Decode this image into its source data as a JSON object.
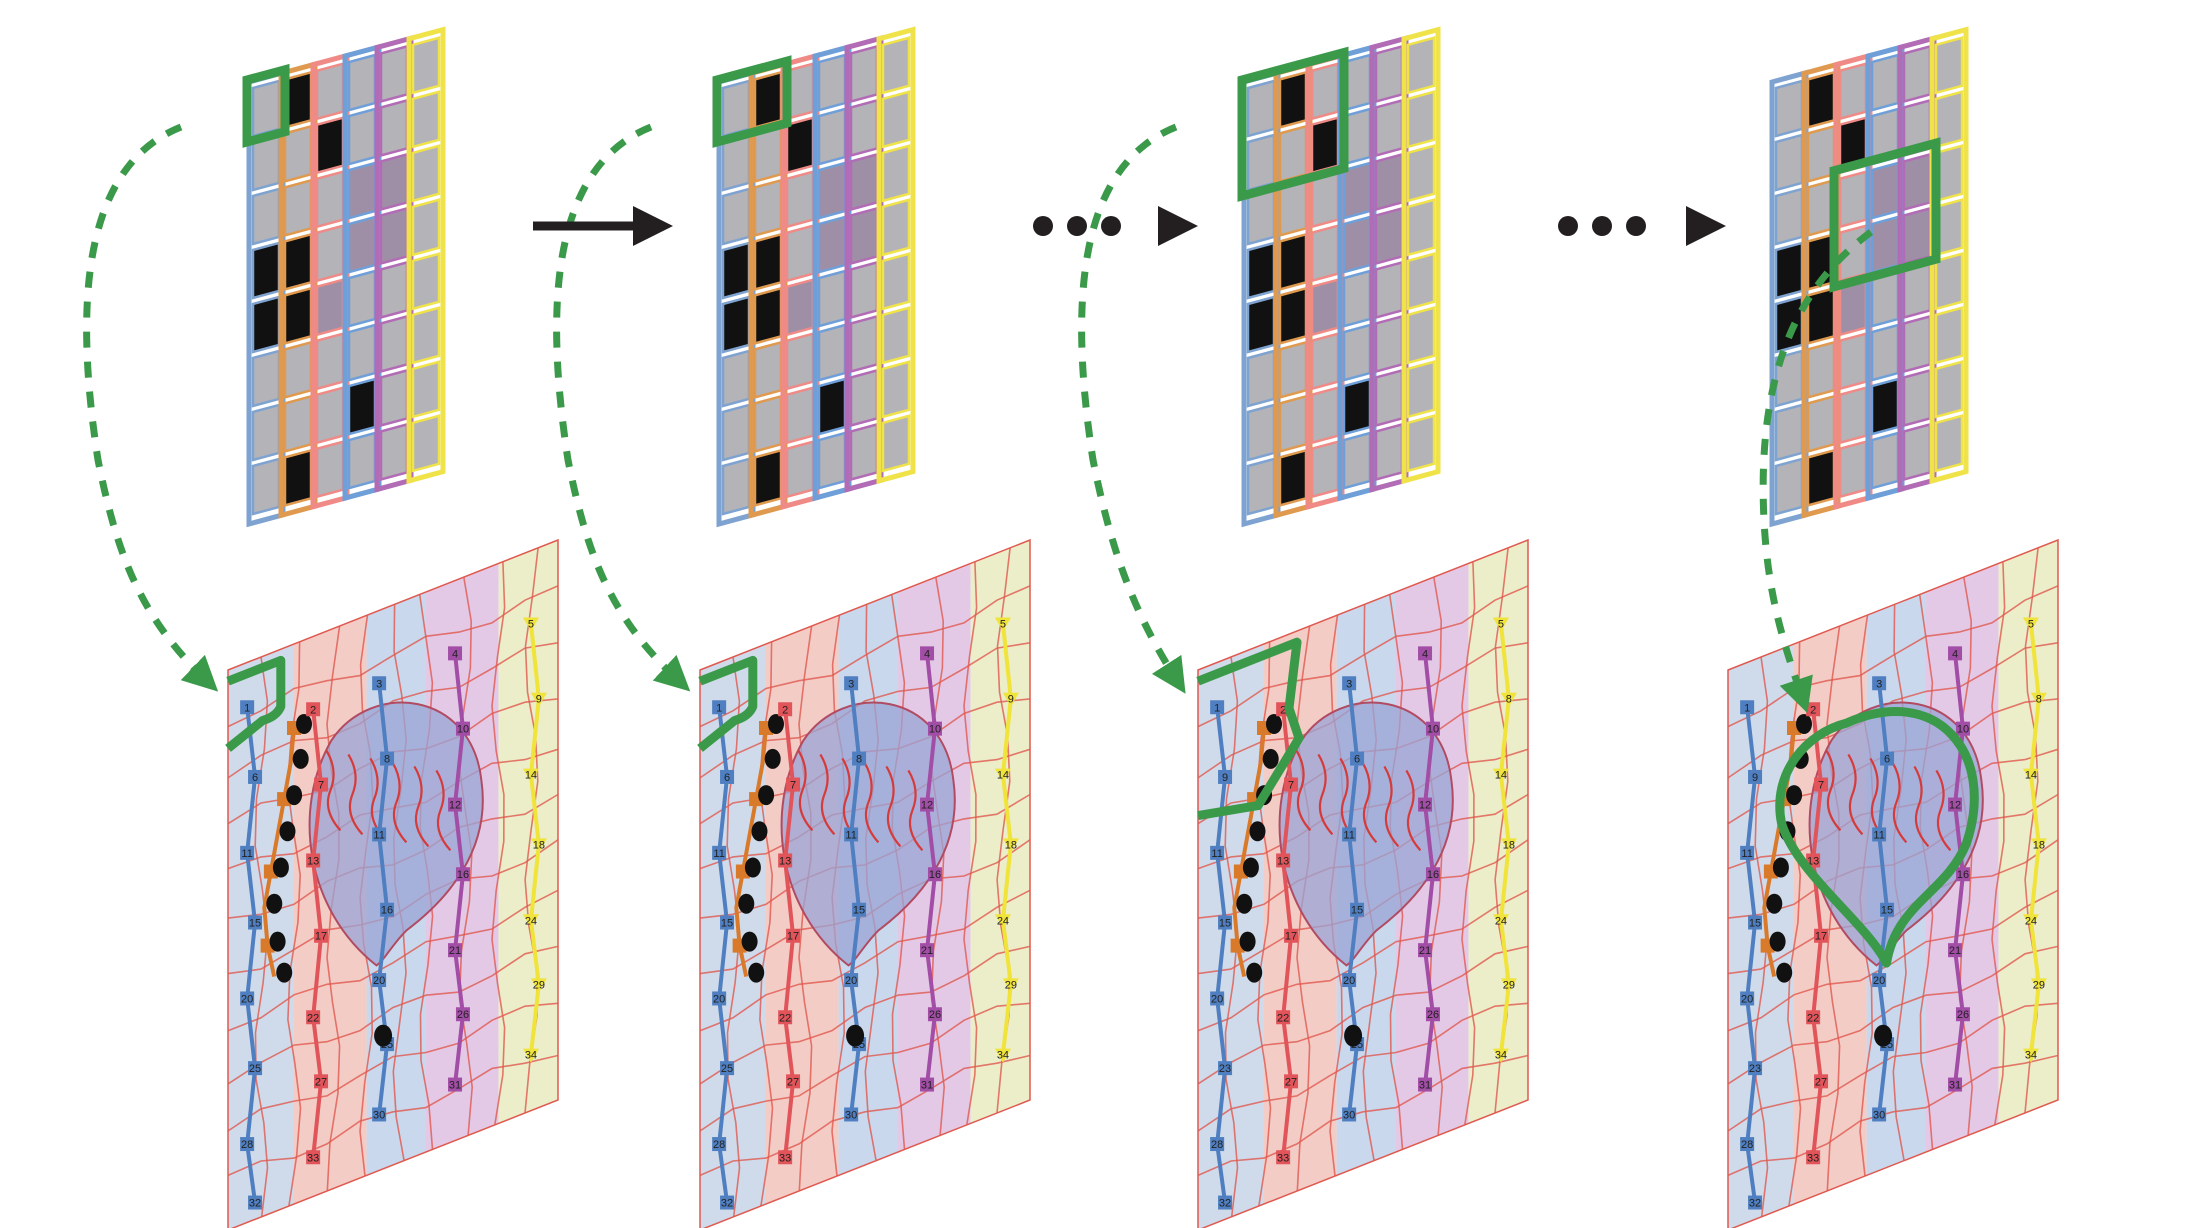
{
  "figure": {
    "stages": [
      {
        "name": "stage-1",
        "grid_highlight": {
          "col": 0,
          "row": 0,
          "cols": 1,
          "rows": 1
        },
        "labels": [
          {
            "node": "b0",
            "text": "1"
          },
          {
            "node": "b1",
            "text": "6"
          },
          {
            "node": "b2",
            "text": "11"
          },
          {
            "node": "b3",
            "text": "15"
          },
          {
            "node": "b4",
            "text": "20"
          },
          {
            "node": "b5",
            "text": "25"
          },
          {
            "node": "b6",
            "text": "28"
          },
          {
            "node": "b7",
            "text": "32"
          },
          {
            "node": "r0",
            "text": "2"
          },
          {
            "node": "r1",
            "text": "7"
          },
          {
            "node": "r2",
            "text": "13"
          },
          {
            "node": "r3",
            "text": "17"
          },
          {
            "node": "r4",
            "text": "22"
          },
          {
            "node": "r5",
            "text": "27"
          },
          {
            "node": "r6",
            "text": "33"
          },
          {
            "node": "c0",
            "text": "3"
          },
          {
            "node": "c1",
            "text": "8"
          },
          {
            "node": "c2",
            "text": "11"
          },
          {
            "node": "c3",
            "text": "16"
          },
          {
            "node": "c4",
            "text": "20"
          },
          {
            "node": "c5",
            "text": "25"
          },
          {
            "node": "c6",
            "text": "30"
          },
          {
            "node": "m0",
            "text": "4"
          },
          {
            "node": "m1",
            "text": "10"
          },
          {
            "node": "m2",
            "text": "12"
          },
          {
            "node": "m3",
            "text": "16"
          },
          {
            "node": "m4",
            "text": "21"
          },
          {
            "node": "m5",
            "text": "26"
          },
          {
            "node": "m6",
            "text": "31"
          },
          {
            "node": "y0",
            "text": "5"
          },
          {
            "node": "y1",
            "text": "9"
          },
          {
            "node": "y2",
            "text": "14"
          },
          {
            "node": "y3",
            "text": "18"
          },
          {
            "node": "y4",
            "text": "24"
          },
          {
            "node": "y5",
            "text": "29"
          },
          {
            "node": "y6",
            "text": "34"
          }
        ]
      },
      {
        "name": "stage-2",
        "grid_highlight": {
          "col": 0,
          "row": 0,
          "cols": 2,
          "rows": 1
        },
        "labels": [
          {
            "node": "b0",
            "text": "1"
          },
          {
            "node": "b1",
            "text": "6"
          },
          {
            "node": "b2",
            "text": "11"
          },
          {
            "node": "b3",
            "text": "15"
          },
          {
            "node": "b4",
            "text": "20"
          },
          {
            "node": "b5",
            "text": "25"
          },
          {
            "node": "b6",
            "text": "28"
          },
          {
            "node": "b7",
            "text": "32"
          },
          {
            "node": "r0",
            "text": "2"
          },
          {
            "node": "r1",
            "text": "7"
          },
          {
            "node": "r2",
            "text": "13"
          },
          {
            "node": "r3",
            "text": "17"
          },
          {
            "node": "r4",
            "text": "22"
          },
          {
            "node": "r5",
            "text": "27"
          },
          {
            "node": "r6",
            "text": "33"
          },
          {
            "node": "c0",
            "text": "3"
          },
          {
            "node": "c1",
            "text": "8"
          },
          {
            "node": "c2",
            "text": "11"
          },
          {
            "node": "c3",
            "text": "15"
          },
          {
            "node": "c4",
            "text": "20"
          },
          {
            "node": "c5",
            "text": "25"
          },
          {
            "node": "c6",
            "text": "30"
          },
          {
            "node": "m0",
            "text": "4"
          },
          {
            "node": "m1",
            "text": "10"
          },
          {
            "node": "m2",
            "text": "12"
          },
          {
            "node": "m3",
            "text": "16"
          },
          {
            "node": "m4",
            "text": "21"
          },
          {
            "node": "m5",
            "text": "26"
          },
          {
            "node": "m6",
            "text": "31"
          },
          {
            "node": "y0",
            "text": "5"
          },
          {
            "node": "y1",
            "text": "9"
          },
          {
            "node": "y2",
            "text": "14"
          },
          {
            "node": "y3",
            "text": "18"
          },
          {
            "node": "y4",
            "text": "24"
          },
          {
            "node": "y5",
            "text": "29"
          },
          {
            "node": "y6",
            "text": "34"
          }
        ]
      },
      {
        "name": "stage-3",
        "grid_highlight": {
          "col": 0,
          "row": 0,
          "cols": 3,
          "rows": 2
        },
        "labels": [
          {
            "node": "b0",
            "text": "1"
          },
          {
            "node": "b1",
            "text": "9"
          },
          {
            "node": "b2",
            "text": "11"
          },
          {
            "node": "b3",
            "text": "15"
          },
          {
            "node": "b4",
            "text": "20"
          },
          {
            "node": "b5",
            "text": "23"
          },
          {
            "node": "b6",
            "text": "28"
          },
          {
            "node": "b7",
            "text": "32"
          },
          {
            "node": "r0",
            "text": "2"
          },
          {
            "node": "r1",
            "text": "7"
          },
          {
            "node": "r2",
            "text": "13"
          },
          {
            "node": "r3",
            "text": "17"
          },
          {
            "node": "r4",
            "text": "22"
          },
          {
            "node": "r5",
            "text": "27"
          },
          {
            "node": "r6",
            "text": "33"
          },
          {
            "node": "c0",
            "text": "3"
          },
          {
            "node": "c1",
            "text": "6"
          },
          {
            "node": "c2",
            "text": "11"
          },
          {
            "node": "c3",
            "text": "15"
          },
          {
            "node": "c4",
            "text": "20"
          },
          {
            "node": "c5",
            "text": "25"
          },
          {
            "node": "c6",
            "text": "30"
          },
          {
            "node": "m0",
            "text": "4"
          },
          {
            "node": "m1",
            "text": "10"
          },
          {
            "node": "m2",
            "text": "12"
          },
          {
            "node": "m3",
            "text": "16"
          },
          {
            "node": "m4",
            "text": "21"
          },
          {
            "node": "m5",
            "text": "26"
          },
          {
            "node": "m6",
            "text": "31"
          },
          {
            "node": "y0",
            "text": "5"
          },
          {
            "node": "y1",
            "text": "8"
          },
          {
            "node": "y2",
            "text": "14"
          },
          {
            "node": "y3",
            "text": "18"
          },
          {
            "node": "y4",
            "text": "24"
          },
          {
            "node": "y5",
            "text": "29"
          },
          {
            "node": "y6",
            "text": "34"
          }
        ]
      },
      {
        "name": "stage-4",
        "grid_highlight": {
          "col": 2,
          "row": 2,
          "cols": 3,
          "rows": 2
        },
        "labels": [
          {
            "node": "b0",
            "text": "1"
          },
          {
            "node": "b1",
            "text": "9"
          },
          {
            "node": "b2",
            "text": "11"
          },
          {
            "node": "b3",
            "text": "15"
          },
          {
            "node": "b4",
            "text": "20"
          },
          {
            "node": "b5",
            "text": "23"
          },
          {
            "node": "b6",
            "text": "28"
          },
          {
            "node": "b7",
            "text": "32"
          },
          {
            "node": "r0",
            "text": "2"
          },
          {
            "node": "r1",
            "text": "7"
          },
          {
            "node": "r2",
            "text": "13"
          },
          {
            "node": "r3",
            "text": "17"
          },
          {
            "node": "r4",
            "text": "22"
          },
          {
            "node": "r5",
            "text": "27"
          },
          {
            "node": "r6",
            "text": "33"
          },
          {
            "node": "c0",
            "text": "3"
          },
          {
            "node": "c1",
            "text": "6"
          },
          {
            "node": "c2",
            "text": "11"
          },
          {
            "node": "c3",
            "text": "15"
          },
          {
            "node": "c4",
            "text": "20"
          },
          {
            "node": "c5",
            "text": "25"
          },
          {
            "node": "c6",
            "text": "30"
          },
          {
            "node": "m0",
            "text": "4"
          },
          {
            "node": "m1",
            "text": "10"
          },
          {
            "node": "m2",
            "text": "12"
          },
          {
            "node": "m3",
            "text": "16"
          },
          {
            "node": "m4",
            "text": "21"
          },
          {
            "node": "m5",
            "text": "26"
          },
          {
            "node": "m6",
            "text": "31"
          },
          {
            "node": "y0",
            "text": "5"
          },
          {
            "node": "y1",
            "text": "8"
          },
          {
            "node": "y2",
            "text": "14"
          },
          {
            "node": "y3",
            "text": "18"
          },
          {
            "node": "y4",
            "text": "24"
          },
          {
            "node": "y5",
            "text": "29"
          },
          {
            "node": "y6",
            "text": "34"
          }
        ]
      }
    ],
    "connectors": [
      {
        "type": "arrow"
      },
      {
        "type": "ellipsis-arrow"
      },
      {
        "type": "ellipsis-arrow"
      }
    ],
    "colors": {
      "column_borders": [
        "#7fa3d1",
        "#e09a4f",
        "#ef8a86",
        "#6f9fd8",
        "#b26bb5",
        "#f0e34a"
      ],
      "cell_fill": "#b3b3b8",
      "cell_black": "#111111",
      "highlight": "#3b9a4a",
      "arrow": "#231f20",
      "mesh_edge": "#e0594f",
      "region_fills": [
        "#cfdbea",
        "#f3ccc6",
        "#c9d8ec",
        "#e3c9e6",
        "#ecedc9"
      ]
    }
  }
}
